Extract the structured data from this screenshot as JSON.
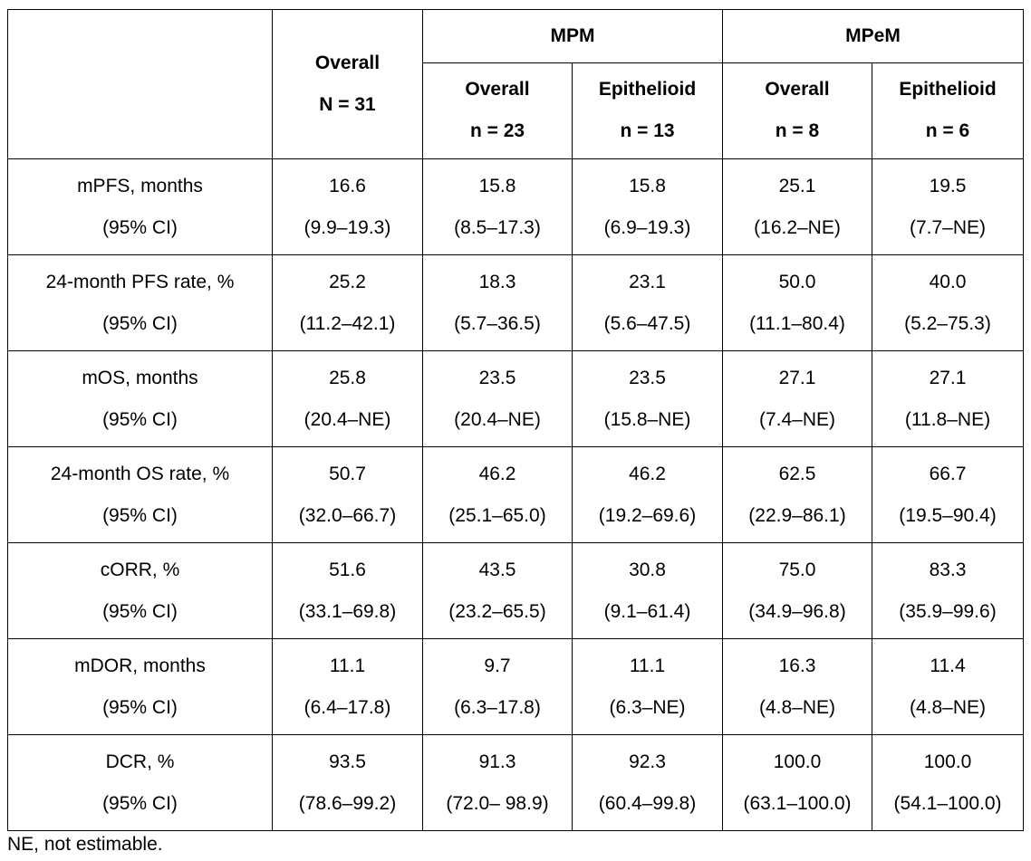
{
  "header": {
    "overall": {
      "title": "Overall",
      "n": "N = 31"
    },
    "groups": [
      {
        "name": "MPM",
        "subs": [
          {
            "title": "Overall",
            "n": "n = 23"
          },
          {
            "title": "Epithelioid",
            "n": "n = 13"
          }
        ]
      },
      {
        "name": "MPeM",
        "subs": [
          {
            "title": "Overall",
            "n": "n = 8"
          },
          {
            "title": "Epithelioid",
            "n": "n = 6"
          }
        ]
      }
    ]
  },
  "rows": [
    {
      "label": "mPFS, months",
      "sublabel": "(95% CI)",
      "cells": [
        {
          "v": "16.6",
          "ci": "(9.9–19.3)"
        },
        {
          "v": "15.8",
          "ci": "(8.5–17.3)"
        },
        {
          "v": "15.8",
          "ci": "(6.9–19.3)"
        },
        {
          "v": "25.1",
          "ci": "(16.2–NE)"
        },
        {
          "v": "19.5",
          "ci": "(7.7–NE)"
        }
      ]
    },
    {
      "label": "24-month PFS rate, %",
      "sublabel": "(95% CI)",
      "cells": [
        {
          "v": "25.2",
          "ci": "(11.2–42.1)"
        },
        {
          "v": "18.3",
          "ci": "(5.7–36.5)"
        },
        {
          "v": "23.1",
          "ci": "(5.6–47.5)"
        },
        {
          "v": "50.0",
          "ci": "(11.1–80.4)"
        },
        {
          "v": "40.0",
          "ci": "(5.2–75.3)"
        }
      ]
    },
    {
      "label": "mOS, months",
      "sublabel": "(95% CI)",
      "cells": [
        {
          "v": "25.8",
          "ci": "(20.4–NE)"
        },
        {
          "v": "23.5",
          "ci": "(20.4–NE)"
        },
        {
          "v": "23.5",
          "ci": "(15.8–NE)"
        },
        {
          "v": "27.1",
          "ci": "(7.4–NE)"
        },
        {
          "v": "27.1",
          "ci": "(11.8–NE)"
        }
      ]
    },
    {
      "label": "24-month OS rate, %",
      "sublabel": "(95% CI)",
      "cells": [
        {
          "v": "50.7",
          "ci": "(32.0–66.7)"
        },
        {
          "v": "46.2",
          "ci": "(25.1–65.0)"
        },
        {
          "v": "46.2",
          "ci": "(19.2–69.6)"
        },
        {
          "v": "62.5",
          "ci": "(22.9–86.1)"
        },
        {
          "v": "66.7",
          "ci": "(19.5–90.4)"
        }
      ]
    },
    {
      "label": "cORR, %",
      "sublabel": "(95% CI)",
      "cells": [
        {
          "v": "51.6",
          "ci": "(33.1–69.8)"
        },
        {
          "v": "43.5",
          "ci": "(23.2–65.5)"
        },
        {
          "v": "30.8",
          "ci": "(9.1–61.4)"
        },
        {
          "v": "75.0",
          "ci": "(34.9–96.8)"
        },
        {
          "v": "83.3",
          "ci": "(35.9–99.6)"
        }
      ]
    },
    {
      "label": "mDOR, months",
      "sublabel": "(95% CI)",
      "cells": [
        {
          "v": "11.1",
          "ci": "(6.4–17.8)"
        },
        {
          "v": "9.7",
          "ci": "(6.3–17.8)"
        },
        {
          "v": "11.1",
          "ci": "(6.3–NE)"
        },
        {
          "v": "16.3",
          "ci": "(4.8–NE)"
        },
        {
          "v": "11.4",
          "ci": "(4.8–NE)"
        }
      ]
    },
    {
      "label": "DCR, %",
      "sublabel": "(95% CI)",
      "cells": [
        {
          "v": "93.5",
          "ci": "(78.6–99.2)"
        },
        {
          "v": "91.3",
          "ci": "(72.0– 98.9)"
        },
        {
          "v": "92.3",
          "ci": "(60.4–99.8)"
        },
        {
          "v": "100.0",
          "ci": "(63.1–100.0)"
        },
        {
          "v": "100.0",
          "ci": "(54.1–100.0)"
        }
      ]
    }
  ],
  "footnote": "NE, not estimable."
}
